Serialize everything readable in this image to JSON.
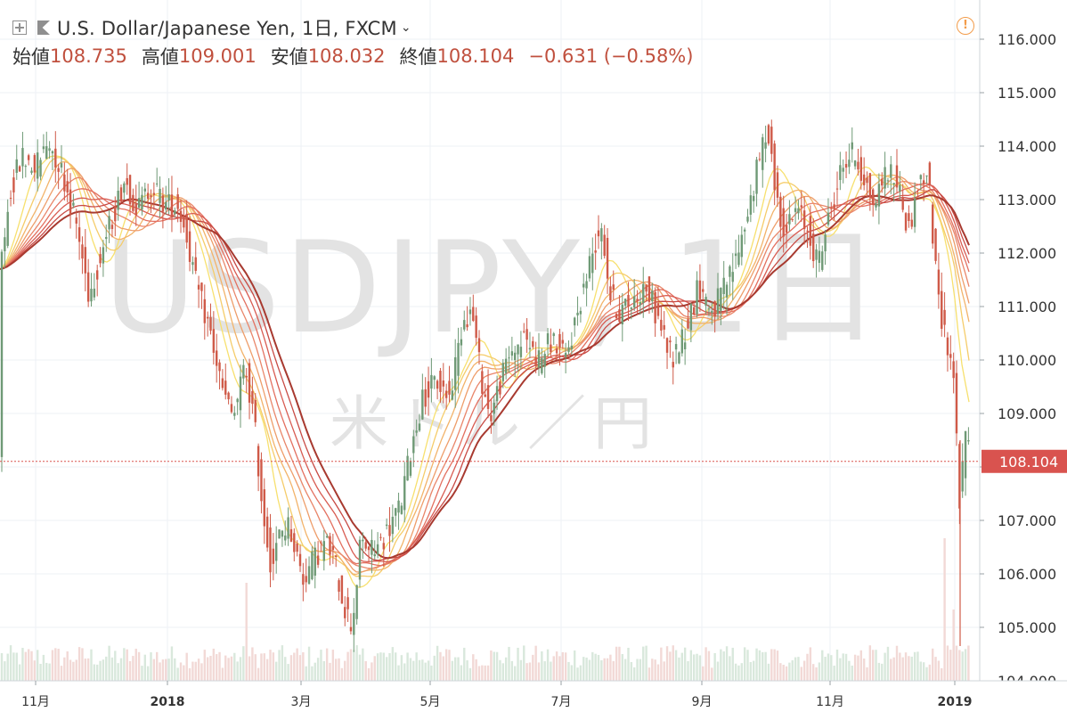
{
  "header": {
    "title": "U.S. Dollar/Japanese Yen, 1日, FXCM",
    "chevron": "⌄",
    "ohlc": [
      {
        "label": "始値",
        "value": "108.735"
      },
      {
        "label": "高値",
        "value": "109.001"
      },
      {
        "label": "安値",
        "value": "108.032"
      },
      {
        "label": "終値",
        "value": "108.104"
      }
    ],
    "change": "−0.631 (−0.58%)",
    "alert_symbol": "!"
  },
  "watermark": {
    "symbol": "USDJPY, 1日",
    "description": "米ドル／円"
  },
  "price_label": "108.104",
  "colors": {
    "up": "#6f9a76",
    "down": "#cf5a48",
    "ribbon": [
      "#f7e06e",
      "#f5cc6a",
      "#f2b36a",
      "#ee9d6a",
      "#e9866a",
      "#e37060",
      "#d85c52",
      "#c84a44",
      "#a83a30"
    ],
    "price_line": "#d9534f"
  },
  "chart_data": {
    "type": "candlestick",
    "title": "U.S. Dollar/Japanese Yen, 1日, FXCM",
    "ylim": [
      104.0,
      116.4
    ],
    "y_ticks": [
      "116.000",
      "115.000",
      "114.000",
      "113.000",
      "112.000",
      "111.000",
      "110.000",
      "109.000",
      "108.000",
      "107.000",
      "106.000",
      "105.000",
      "104.000"
    ],
    "x_ticks": [
      "11月",
      "2018",
      "3月",
      "5月",
      "7月",
      "9月",
      "11月",
      "2019"
    ],
    "last_close": 108.104,
    "close_path": [
      [
        0,
        111.7
      ],
      [
        12,
        113.2
      ],
      [
        25,
        113.8
      ],
      [
        40,
        113.6
      ],
      [
        55,
        114.1
      ],
      [
        70,
        113.5
      ],
      [
        85,
        112.6
      ],
      [
        100,
        111.2
      ],
      [
        115,
        112.1
      ],
      [
        125,
        112.6
      ],
      [
        140,
        113.4
      ],
      [
        155,
        112.8
      ],
      [
        170,
        113.3
      ],
      [
        185,
        112.9
      ],
      [
        200,
        112.9
      ],
      [
        210,
        112.3
      ],
      [
        220,
        111.4
      ],
      [
        235,
        110.6
      ],
      [
        250,
        109.4
      ],
      [
        262,
        108.9
      ],
      [
        275,
        109.9
      ],
      [
        285,
        108.9
      ],
      [
        295,
        107.2
      ],
      [
        305,
        106.1
      ],
      [
        315,
        106.8
      ],
      [
        325,
        106.9
      ],
      [
        340,
        105.9
      ],
      [
        350,
        106.2
      ],
      [
        365,
        106.6
      ],
      [
        375,
        106.3
      ],
      [
        385,
        105.5
      ],
      [
        395,
        105.0
      ],
      [
        405,
        106.6
      ],
      [
        420,
        106.4
      ],
      [
        435,
        106.8
      ],
      [
        450,
        107.3
      ],
      [
        462,
        108.4
      ],
      [
        475,
        109.3
      ],
      [
        490,
        109.6
      ],
      [
        505,
        109.3
      ],
      [
        520,
        110.8
      ],
      [
        530,
        110.9
      ],
      [
        540,
        109.7
      ],
      [
        550,
        108.9
      ],
      [
        560,
        109.5
      ],
      [
        575,
        110.2
      ],
      [
        590,
        110.4
      ],
      [
        605,
        110.0
      ],
      [
        620,
        110.4
      ],
      [
        635,
        110.0
      ],
      [
        650,
        111.0
      ],
      [
        665,
        112.0
      ],
      [
        675,
        112.6
      ],
      [
        685,
        111.2
      ],
      [
        695,
        110.9
      ],
      [
        710,
        111.1
      ],
      [
        725,
        111.4
      ],
      [
        740,
        110.7
      ],
      [
        755,
        110.0
      ],
      [
        770,
        110.6
      ],
      [
        785,
        111.4
      ],
      [
        800,
        110.9
      ],
      [
        815,
        111.4
      ],
      [
        825,
        111.8
      ],
      [
        840,
        112.8
      ],
      [
        852,
        113.7
      ],
      [
        862,
        114.4
      ],
      [
        872,
        113.0
      ],
      [
        882,
        112.4
      ],
      [
        895,
        112.8
      ],
      [
        908,
        112.4
      ],
      [
        918,
        111.8
      ],
      [
        930,
        112.6
      ],
      [
        945,
        113.6
      ],
      [
        958,
        113.9
      ],
      [
        970,
        113.4
      ],
      [
        982,
        112.9
      ],
      [
        995,
        113.6
      ],
      [
        1008,
        113.3
      ],
      [
        1020,
        112.4
      ],
      [
        1032,
        113.3
      ],
      [
        1042,
        113.5
      ],
      [
        1052,
        111.3
      ],
      [
        1062,
        110.4
      ],
      [
        1070,
        109.9
      ],
      [
        1078,
        107.2
      ],
      [
        1084,
        108.7
      ],
      [
        1090,
        108.1
      ]
    ],
    "volume_spikes": [
      [
        278,
        0.55
      ],
      [
        1060,
        0.8
      ],
      [
        1072,
        0.4
      ]
    ]
  }
}
